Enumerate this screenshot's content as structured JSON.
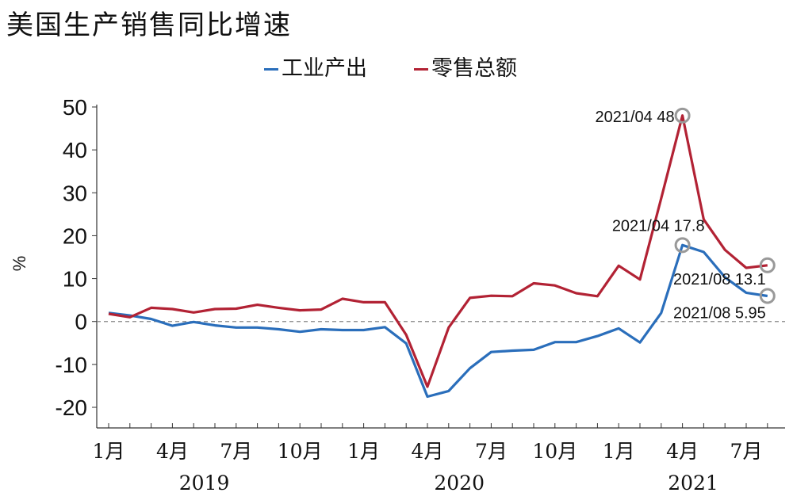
{
  "chart_data": {
    "type": "line",
    "title": "美国生产销售同比增速",
    "ylabel": "%",
    "xlabel": "",
    "ylim": [
      -20,
      50
    ],
    "yticks": [
      50,
      40,
      30,
      20,
      10,
      0,
      -10,
      -20
    ],
    "x_tick_labels": [
      "1月",
      "4月",
      "7月",
      "10月",
      "1月",
      "4月",
      "7月",
      "10月",
      "1月",
      "4月",
      "7月"
    ],
    "year_labels": [
      "2019",
      "2020",
      "2021"
    ],
    "x": [
      "2019/01",
      "2019/02",
      "2019/03",
      "2019/04",
      "2019/05",
      "2019/06",
      "2019/07",
      "2019/08",
      "2019/09",
      "2019/10",
      "2019/11",
      "2019/12",
      "2020/01",
      "2020/02",
      "2020/03",
      "2020/04",
      "2020/05",
      "2020/06",
      "2020/07",
      "2020/08",
      "2020/09",
      "2020/10",
      "2020/11",
      "2020/12",
      "2021/01",
      "2021/02",
      "2021/03",
      "2021/04",
      "2021/05",
      "2021/06",
      "2021/07",
      "2021/08"
    ],
    "legend_position": "top",
    "grid": false,
    "zero_line": "dashed",
    "series": [
      {
        "name": "工业产出",
        "color": "#2a6ebb",
        "values": [
          2.0,
          1.4,
          0.6,
          -1.0,
          -0.1,
          -0.9,
          -1.4,
          -1.4,
          -1.8,
          -2.4,
          -1.8,
          -2.0,
          -2.0,
          -1.3,
          -5.1,
          -17.5,
          -16.2,
          -10.9,
          -7.1,
          -6.8,
          -6.6,
          -4.8,
          -4.8,
          -3.4,
          -1.6,
          -4.9,
          2.0,
          17.8,
          16.2,
          10.3,
          6.7,
          5.95
        ]
      },
      {
        "name": "零售总额",
        "color": "#b22234",
        "values": [
          1.8,
          1.0,
          3.2,
          2.9,
          2.1,
          2.9,
          3.0,
          3.9,
          3.2,
          2.6,
          2.8,
          5.3,
          4.5,
          4.5,
          -3.1,
          -15.2,
          -1.4,
          5.5,
          6.0,
          5.9,
          8.9,
          8.4,
          6.6,
          5.9,
          13.0,
          9.8,
          28.7,
          48.0,
          23.8,
          16.7,
          12.5,
          13.1
        ]
      }
    ],
    "annotations": [
      {
        "label": "2021/04 48",
        "series": "零售总额",
        "x": "2021/04",
        "y": 48.0
      },
      {
        "label": "2021/04 17.8",
        "series": "工业产出",
        "x": "2021/04",
        "y": 17.8
      },
      {
        "label": "2021/08 13.1",
        "series": "零售总额",
        "x": "2021/08",
        "y": 13.1
      },
      {
        "label": "2021/08 5.95",
        "series": "工业产出",
        "x": "2021/08",
        "y": 5.95
      }
    ]
  }
}
